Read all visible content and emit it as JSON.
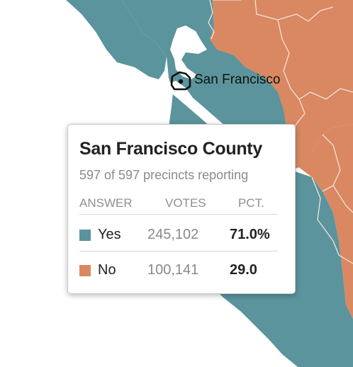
{
  "colors": {
    "yes": "#5b949c",
    "no": "#d98862",
    "county_border": "#f3e2d8",
    "water": "#ffffff"
  },
  "map": {
    "city_marker": "city-marker-icon",
    "city_label": "San Francisco"
  },
  "tooltip": {
    "title": "San Francisco County",
    "subtitle": "597 of 597 precincts reporting",
    "headers": {
      "answer": "ANSWER",
      "votes": "VOTES",
      "pct": "PCT."
    },
    "rows": [
      {
        "answer": "Yes",
        "votes": "245,102",
        "pct": "71.0%",
        "result": "yes"
      },
      {
        "answer": "No",
        "votes": "100,141",
        "pct": "29.0",
        "result": "no"
      }
    ]
  }
}
